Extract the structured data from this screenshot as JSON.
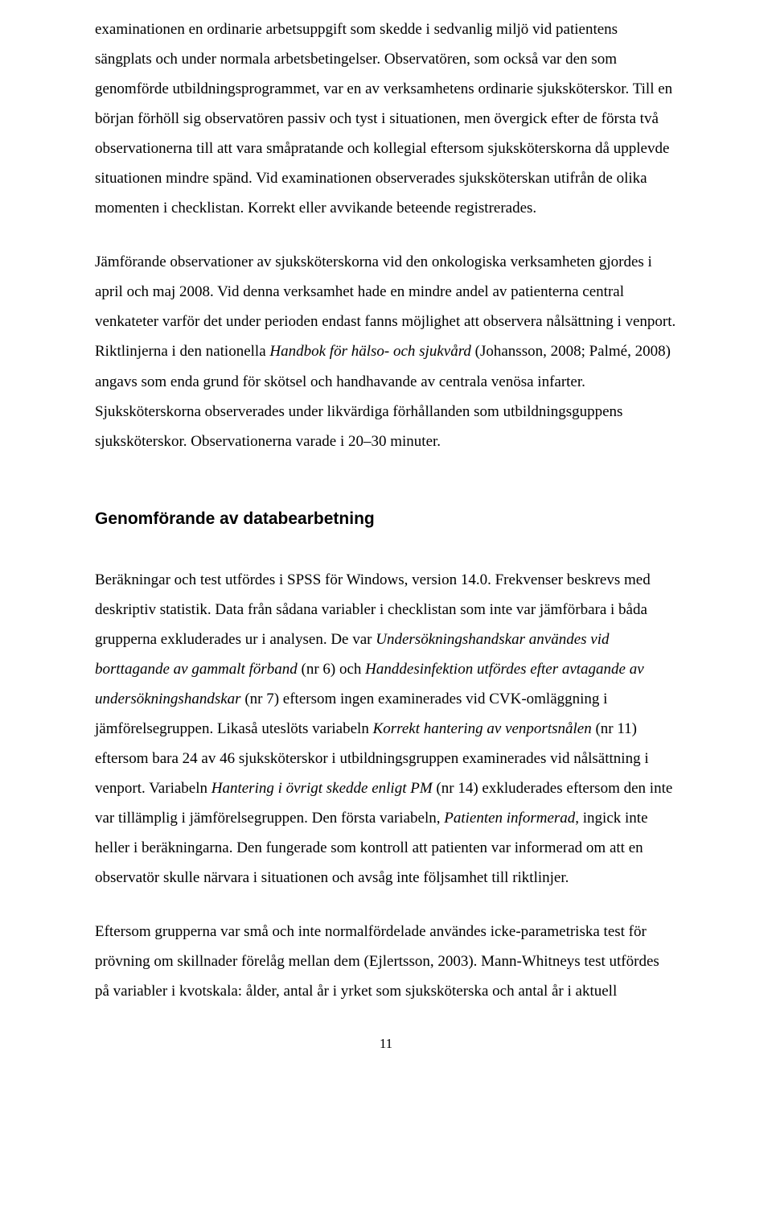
{
  "document": {
    "page_number": "11",
    "heading": "Genomförande av databearbetning",
    "p1_a": "examinationen en ordinarie arbetsuppgift som skedde i sedvanlig miljö vid patientens sängplats och under normala arbetsbetingelser. Observatören, som också var den som genomförde utbildningsprogrammet, var en av verksamhetens ordinarie sjuksköterskor. Till en början förhöll sig observatören passiv och tyst i situationen, men övergick efter de första två observationerna till att vara småpratande och kollegial eftersom sjuksköterskorna då upplevde situationen mindre spänd. Vid examinationen observerades sjuksköterskan utifrån de olika momenten i checklistan. Korrekt eller avvikande beteende registrerades.",
    "p2_pre": "Jämförande observationer av sjuksköterskorna vid den onkologiska verksamheten gjordes i april och maj 2008. Vid denna verksamhet hade en mindre andel av patienterna central venkateter varför det under perioden endast fanns möjlighet att observera nålsättning i venport. Riktlinjerna i den nationella ",
    "p2_italic": "Handbok för hälso- och sjukvård",
    "p2_post": " (Johansson, 2008; Palmé, 2008) angavs som enda grund för skötsel och handhavande av centrala venösa infarter. Sjuksköterskorna observerades under likvärdiga förhållanden som utbildningsguppens sjuksköterskor. Observationerna varade i 20–30 minuter.",
    "p3_a": "Beräkningar och test utfördes i SPSS för Windows, version 14.0. Frekvenser beskrevs med deskriptiv statistik. Data från sådana variabler i checklistan som inte var jämförbara i båda grupperna exkluderades ur i analysen. De var ",
    "p3_it1": "Undersökningshandskar användes vid borttagande av gammalt förband",
    "p3_b": " (nr 6) och ",
    "p3_it2": "Handdesinfektion utfördes efter avtagande av undersökningshandskar",
    "p3_c": " (nr 7) eftersom ingen examinerades vid CVK-omläggning i jämförelsegruppen. Likaså uteslöts variabeln ",
    "p3_it3": "Korrekt hantering av venportsnålen",
    "p3_d": " (nr 11) eftersom bara 24 av 46 sjuksköterskor i utbildningsgruppen examinerades vid nålsättning i venport. Variabeln ",
    "p3_it4": "Hantering i övrigt skedde enligt PM",
    "p3_e": " (nr 14) exkluderades eftersom den inte var tillämplig i jämförelsegruppen. Den första variabeln, ",
    "p3_it5": "Patienten informerad",
    "p3_f": ", ingick inte heller i beräkningarna. Den fungerade som kontroll att patienten var informerad om att en observatör skulle närvara i situationen och avsåg inte följsamhet till riktlinjer.",
    "p4": "Eftersom grupperna var små och inte normalfördelade användes icke-parametriska test för prövning om skillnader förelåg mellan dem (Ejlertsson, 2003). Mann-Whitneys test utfördes på variabler i kvotskala: ålder, antal år i yrket som sjuksköterska och antal år i aktuell"
  }
}
